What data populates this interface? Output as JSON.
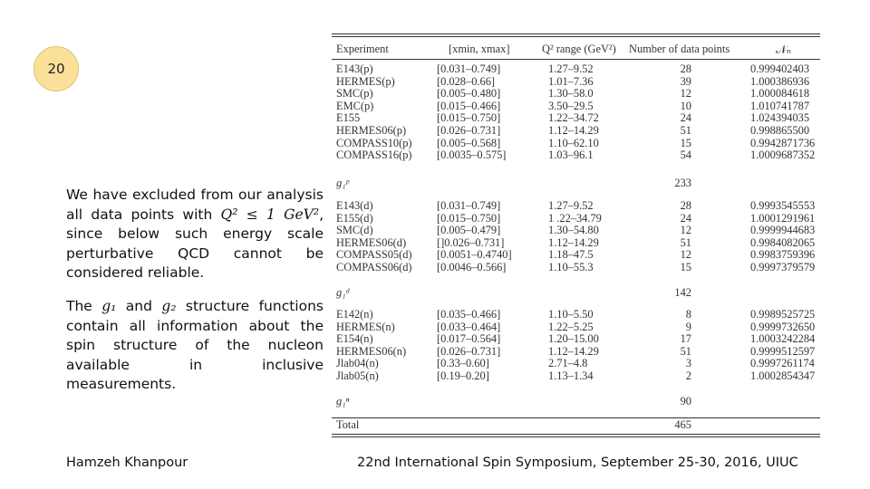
{
  "slide_number": "20",
  "text": {
    "p1_part1": "We have excluded from our analysis all data points with ",
    "p1_math": "Q² ≤ 1 GeV²",
    "p1_part2": ", since below such energy scale perturbative QCD  cannot be considered reliable.",
    "p2_part1": "The ",
    "p2_g1": "g₁",
    "p2_and": " and ",
    "p2_g2": "g₂",
    "p2_part2": " structure functions contain all information about the spin structure of the nucleon available in inclusive measurements."
  },
  "footer": {
    "author": "Hamzeh Khanpour",
    "event": "22nd International Spin Symposium, September 25-30, 2016, UIUC"
  },
  "table": {
    "headers": {
      "experiment": "Experiment",
      "x_range": "[xmin, xmax]",
      "q2_range": "Q² range (GeV²)",
      "num_points": "Number of data points",
      "norm": "𝒩ₙ"
    },
    "proton_rows": [
      [
        "E143(p)",
        "[0.031–0.749]",
        "1.27–9.52",
        "28",
        "0.999402403"
      ],
      [
        "HERMES(p)",
        "[0.028–0.66]",
        "1.01–7.36",
        "39",
        "1.000386936"
      ],
      [
        "SMC(p)",
        "[0.005–0.480]",
        "1.30–58.0",
        "12",
        "1.000084618"
      ],
      [
        "EMC(p)",
        "[0.015–0.466]",
        "3.50–29.5",
        "10",
        "1.010741787"
      ],
      [
        "E155",
        "[0.015–0.750]",
        "1.22–34.72",
        "24",
        "1.024394035"
      ],
      [
        "HERMES06(p)",
        "[0.026–0.731]",
        "1.12–14.29",
        "51",
        "0.998865500"
      ],
      [
        "COMPASS10(p)",
        "[0.005–0.568]",
        "1.10–62.10",
        "15",
        "0.9942871736"
      ],
      [
        "COMPASS16(p)",
        "[0.0035–0.575]",
        "1.03–96.1",
        "54",
        "1.0009687352"
      ]
    ],
    "proton_label": "g₁ᵖ",
    "proton_total": "233",
    "deuteron_rows": [
      [
        "E143(d)",
        "[0.031–0.749]",
        "1.27–9.52",
        "28",
        "0.9993545553"
      ],
      [
        "E155(d)",
        "[0.015–0.750]",
        "1 .22–34.79",
        "24",
        "1.0001291961"
      ],
      [
        "SMC(d)",
        "[0.005–0.479]",
        "1.30–54.80",
        "12",
        "0.9999944683"
      ],
      [
        "HERMES06(d)",
        "[]0.026–0.731]",
        "1.12–14.29",
        "51",
        "0.9984082065"
      ],
      [
        "COMPASS05(d)",
        "[0.0051–0.4740]",
        "1.18–47.5",
        "12",
        "0.9983759396"
      ],
      [
        "COMPASS06(d)",
        "[0.0046–0.566]",
        "1.10–55.3",
        "15",
        "0.9997379579"
      ]
    ],
    "deuteron_label": "g₁ᵈ",
    "deuteron_total": "142",
    "neutron_rows": [
      [
        "E142(n)",
        "[0.035–0.466]",
        "1.10–5.50",
        "8",
        "0.9989525725"
      ],
      [
        "HERMES(n)",
        "[0.033–0.464]",
        "1.22–5.25",
        "9",
        "0.9999732650"
      ],
      [
        "E154(n)",
        "[0.017–0.564]",
        "1.20–15.00",
        "17",
        "1.0003242284"
      ],
      [
        "HERMES06(n)",
        "[0.026–0.731]",
        "1.12–14.29",
        "51",
        "0.9999512597"
      ],
      [
        "Jlab04(n)",
        "[0.33–0.60]",
        "2.71–4.8",
        "3",
        "0.9997261174"
      ],
      [
        "Jlab05(n)",
        "[0.19–0.20]",
        "1.13–1.34",
        "2",
        "1.0002854347"
      ]
    ],
    "neutron_label": "g₁ⁿ",
    "neutron_total": "90",
    "total_label": "Total",
    "total_value": "465"
  }
}
